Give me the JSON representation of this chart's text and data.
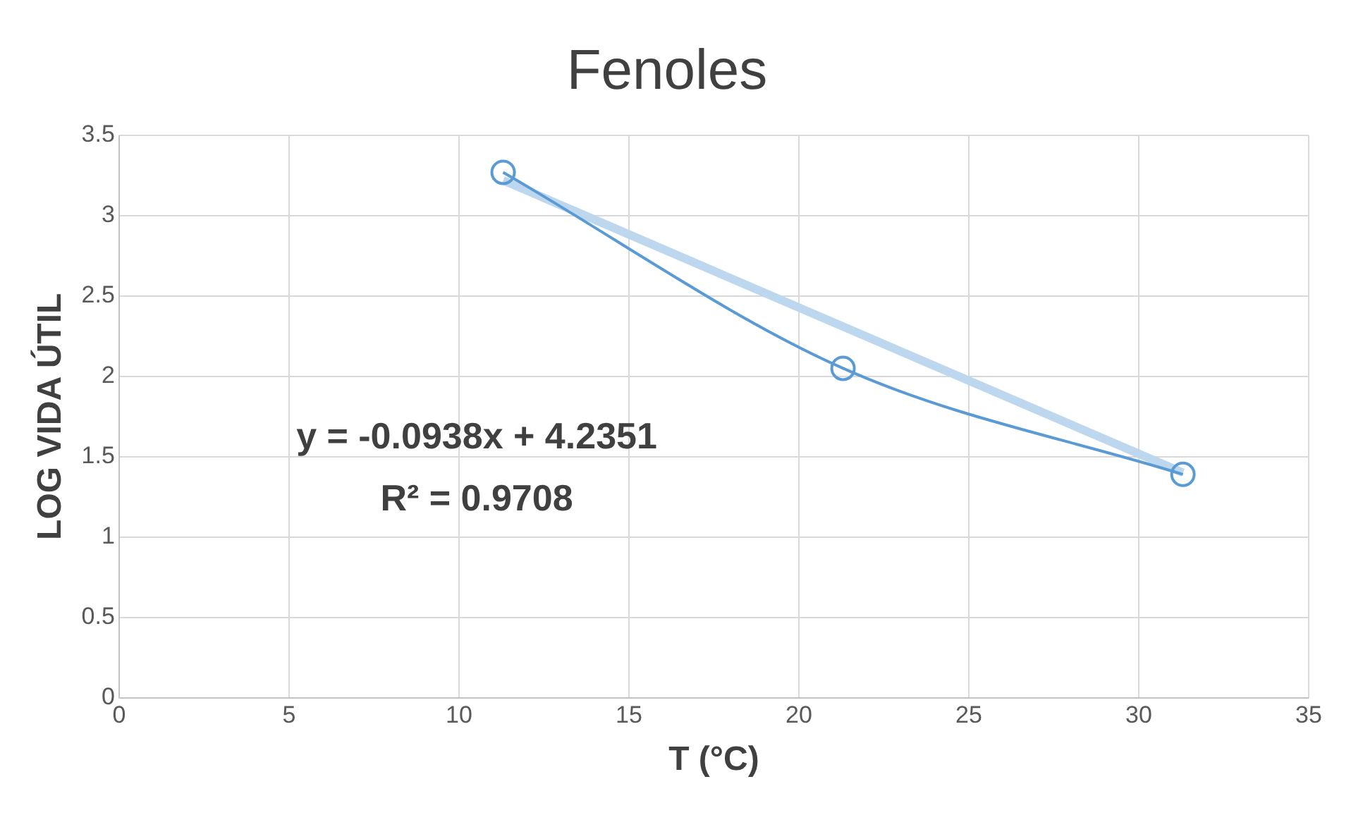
{
  "chart_data": {
    "type": "line",
    "title": "Fenoles",
    "xlabel": "T (°C)",
    "ylabel": "LOG VIDA ÚTIL",
    "xlim": [
      0,
      35
    ],
    "xticks": [
      0,
      5,
      10,
      15,
      20,
      25,
      30,
      35
    ],
    "ylim": [
      0,
      3.5
    ],
    "yticks": [
      0,
      0.5,
      1,
      1.5,
      2,
      2.5,
      3,
      3.5
    ],
    "grid": true,
    "legend": false,
    "line_style": "solid",
    "series": [
      {
        "color": "#5b9bd5",
        "marker": "circle",
        "x": [
          11.3,
          21.3,
          31.3
        ],
        "values": [
          3.27,
          2.05,
          1.39
        ]
      },
      {
        "color": "#bdd7ee",
        "marker": "none",
        "x": [
          11.3,
          31.3
        ],
        "values": [
          3.22,
          1.4
        ]
      }
    ],
    "annotations": [
      "y = -0.0938x + 4.2351",
      "R² = 0.9708"
    ]
  }
}
